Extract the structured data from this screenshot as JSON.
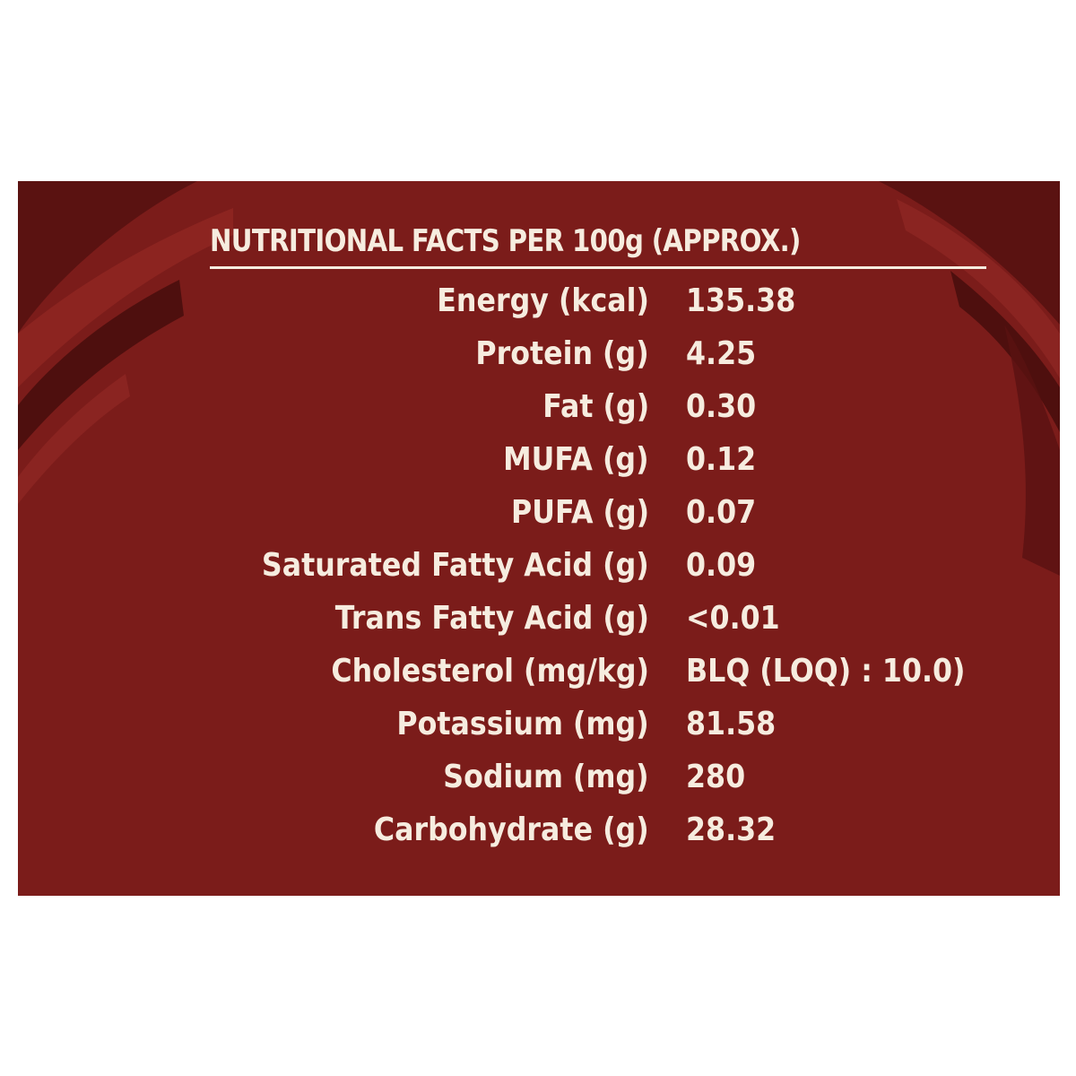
{
  "panel": {
    "title": "NUTRITIONAL FACTS PER 100g (APPROX.)",
    "colors": {
      "background": "#7b1c1a",
      "dark_swirl": "#4e0f0e",
      "text": "#f6ecdf"
    }
  },
  "nutrients": [
    {
      "label": "Energy (kcal)",
      "value": "135.38"
    },
    {
      "label": "Protein (g)",
      "value": "4.25"
    },
    {
      "label": "Fat (g)",
      "value": "0.30"
    },
    {
      "label": "MUFA (g)",
      "value": "0.12"
    },
    {
      "label": "PUFA (g)",
      "value": "0.07"
    },
    {
      "label": "Saturated Fatty Acid (g)",
      "value": "0.09"
    },
    {
      "label": "Trans Fatty Acid (g)",
      "value": "<0.01"
    },
    {
      "label": "Cholesterol (mg/kg)",
      "value": "BLQ (LOQ) : 10.0)"
    },
    {
      "label": "Potassium (mg)",
      "value": "81.58"
    },
    {
      "label": "Sodium (mg)",
      "value": "280"
    },
    {
      "label": "Carbohydrate (g)",
      "value": "28.32"
    }
  ]
}
